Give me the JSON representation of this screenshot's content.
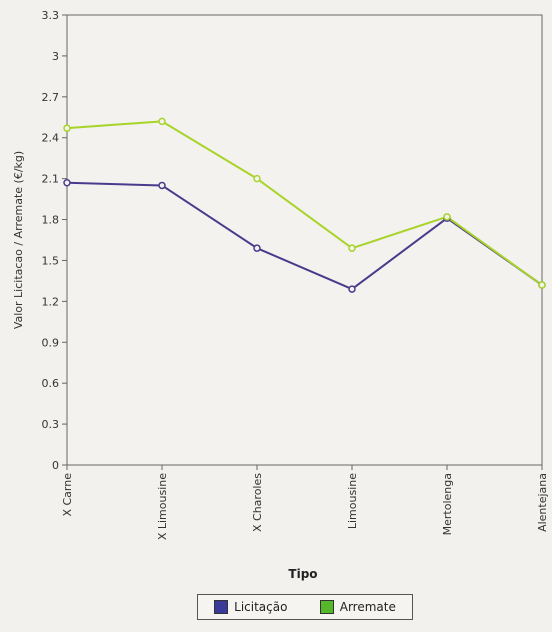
{
  "chart_data": {
    "type": "line",
    "xlabel": "Tipo",
    "ylabel": "Valor Licitacao / Arremate (€/kg)",
    "categories": [
      "X Carne",
      "X Limousine",
      "X Charoles",
      "Limousine",
      "Mertolenga",
      "Alentejana"
    ],
    "ylim": [
      0,
      3.3
    ],
    "yticks": [
      "0",
      "0.3",
      "0.6",
      "0.9",
      "1.2",
      "1.5",
      "1.8",
      "2.1",
      "2.4",
      "2.7",
      "3",
      "3.3"
    ],
    "series": [
      {
        "name": "Licitação",
        "color": "#4b3a8c",
        "values": [
          2.07,
          2.05,
          1.59,
          1.29,
          1.81,
          1.32
        ]
      },
      {
        "name": "Arremate",
        "color": "#a8d42a",
        "values": [
          2.47,
          2.52,
          2.1,
          1.59,
          1.82,
          1.32
        ]
      }
    ],
    "grid": false,
    "legend_position": "bottom"
  },
  "legend": {
    "licitacao_label": "Licitação",
    "licitacao_color": "#3a3a9a",
    "arremate_label": "Arremate",
    "arremate_color": "#55b82a"
  }
}
